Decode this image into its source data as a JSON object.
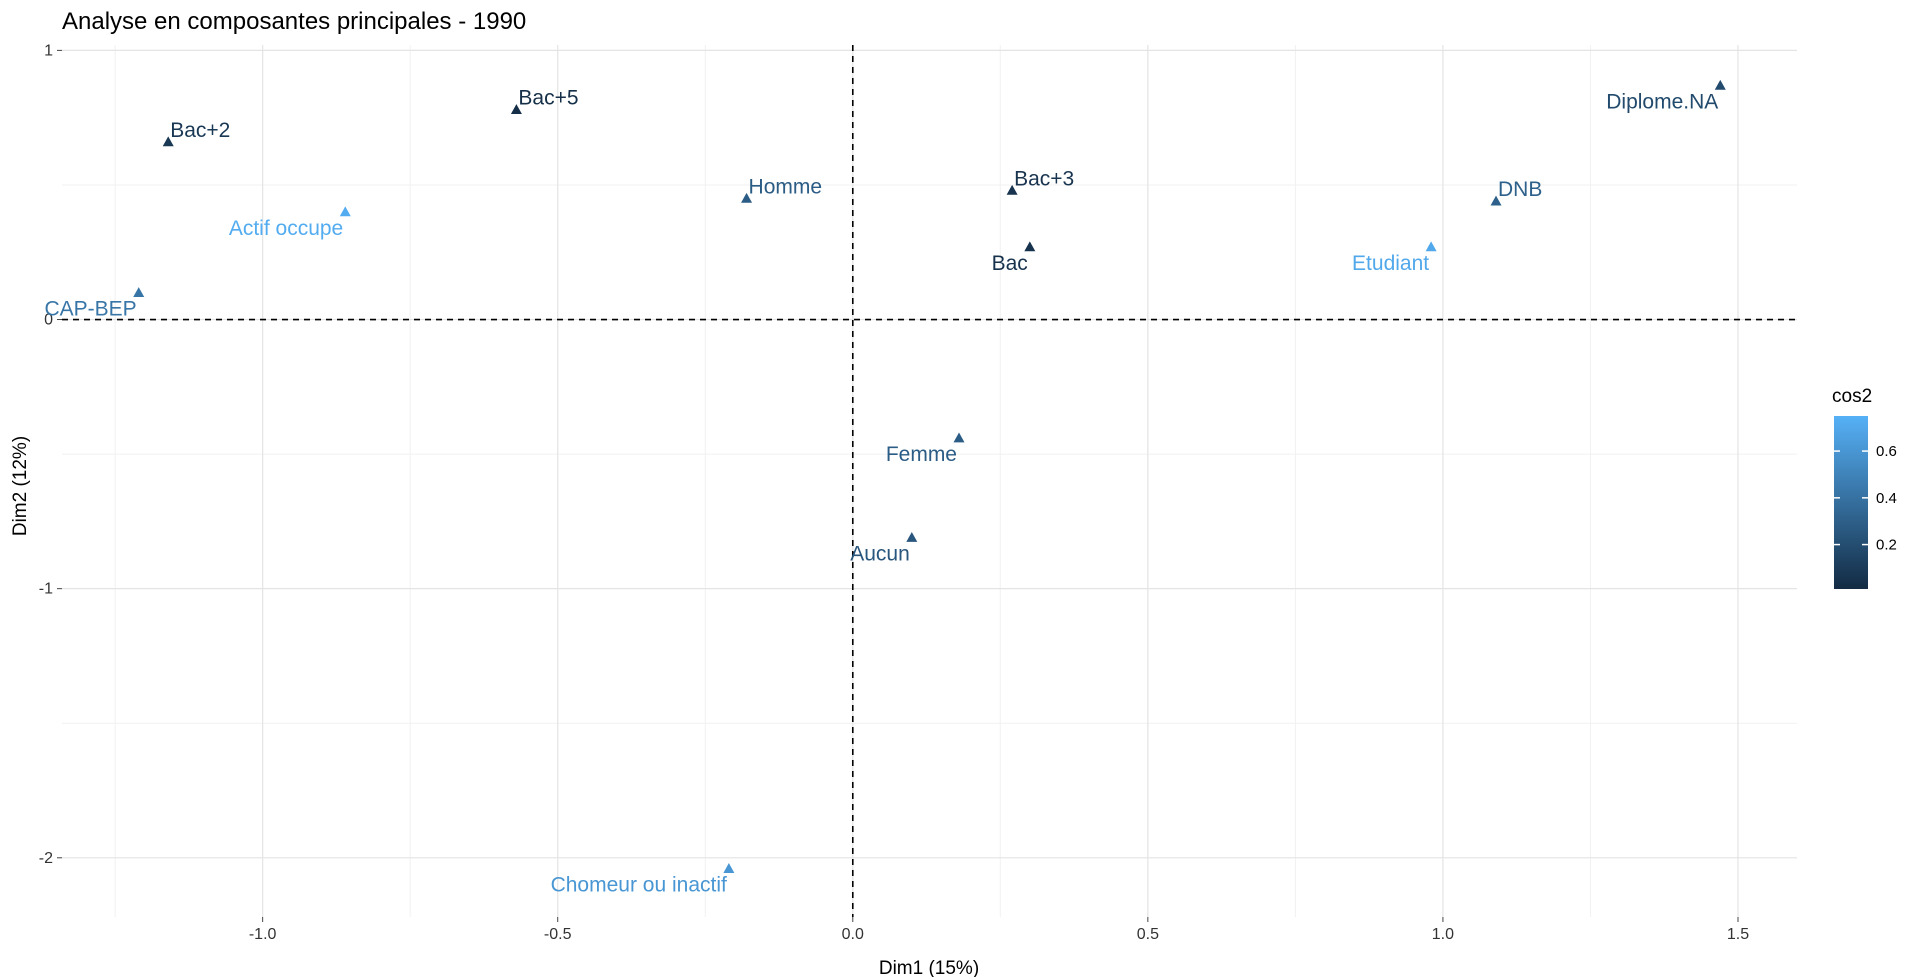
{
  "chart_data": {
    "type": "scatter",
    "title": "Analyse en composantes principales - 1990",
    "xlabel": "Dim1 (15%)",
    "ylabel": "Dim2 (12%)",
    "xlim": [
      -1.34,
      1.6
    ],
    "ylim": [
      -2.22,
      1.02
    ],
    "xticks": [
      -1.0,
      -0.5,
      0.0,
      0.5,
      1.0,
      1.5
    ],
    "xtick_labels": [
      "-1.0",
      "-0.5",
      "0.0",
      "0.5",
      "1.0",
      "1.5"
    ],
    "yticks": [
      -2,
      -1,
      0,
      1
    ],
    "ytick_labels": [
      "-2",
      "-1",
      "0",
      "1"
    ],
    "grid": true,
    "reference_lines": {
      "x": 0,
      "y": 0,
      "style": "dashed"
    },
    "marker": "triangle",
    "color_scale": {
      "variable": "cos2",
      "title": "cos2",
      "low_color": "#132b43",
      "high_color": "#56b1f7",
      "range": [
        0.01,
        0.75
      ],
      "ticks": [
        0.2,
        0.4,
        0.6
      ],
      "tick_labels": [
        "0.2",
        "0.4",
        "0.6"
      ],
      "legend_position": "right"
    },
    "points": [
      {
        "label": "Bac+2",
        "x": -1.16,
        "y": 0.66,
        "cos2": 0.08,
        "label_pos": "above-right"
      },
      {
        "label": "Bac+5",
        "x": -0.57,
        "y": 0.78,
        "cos2": 0.03,
        "label_pos": "above-right"
      },
      {
        "label": "Actif occupe",
        "x": -0.86,
        "y": 0.4,
        "cos2": 0.72,
        "label_pos": "below-left"
      },
      {
        "label": "CAP-BEP",
        "x": -1.21,
        "y": 0.1,
        "cos2": 0.42,
        "label_pos": "below-left"
      },
      {
        "label": "Homme",
        "x": -0.18,
        "y": 0.45,
        "cos2": 0.28,
        "label_pos": "above-right"
      },
      {
        "label": "Bac+3",
        "x": 0.27,
        "y": 0.48,
        "cos2": 0.06,
        "label_pos": "above-right"
      },
      {
        "label": "Bac",
        "x": 0.3,
        "y": 0.27,
        "cos2": 0.05,
        "label_pos": "below-left"
      },
      {
        "label": "DNB",
        "x": 1.09,
        "y": 0.44,
        "cos2": 0.3,
        "label_pos": "above-right"
      },
      {
        "label": "Etudiant",
        "x": 0.98,
        "y": 0.27,
        "cos2": 0.7,
        "label_pos": "below-left"
      },
      {
        "label": "Diplome.NA",
        "x": 1.47,
        "y": 0.87,
        "cos2": 0.18,
        "label_pos": "below-left"
      },
      {
        "label": "Femme",
        "x": 0.18,
        "y": -0.44,
        "cos2": 0.28,
        "label_pos": "below-left"
      },
      {
        "label": "Aucun",
        "x": 0.1,
        "y": -0.81,
        "cos2": 0.25,
        "label_pos": "below-left"
      },
      {
        "label": "Chomeur ou inactif",
        "x": -0.21,
        "y": -2.04,
        "cos2": 0.6,
        "label_pos": "below-left"
      }
    ]
  }
}
